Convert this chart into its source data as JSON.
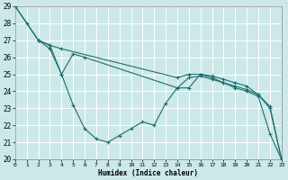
{
  "xlabel": "Humidex (Indice chaleur)",
  "xlim": [
    0,
    23
  ],
  "ylim": [
    20,
    29
  ],
  "yticks": [
    20,
    21,
    22,
    23,
    24,
    25,
    26,
    27,
    28,
    29
  ],
  "xticks": [
    0,
    1,
    2,
    3,
    4,
    5,
    6,
    7,
    8,
    9,
    10,
    11,
    12,
    13,
    14,
    15,
    16,
    17,
    18,
    19,
    20,
    21,
    22,
    23
  ],
  "bg_color": "#cce8e8",
  "grid_color": "#ffffff",
  "line_color": "#1a6e6e",
  "series": [
    {
      "x": [
        0,
        2,
        3,
        4,
        14,
        15,
        16,
        17,
        18,
        19,
        20,
        21,
        22,
        23
      ],
      "y": [
        29,
        27,
        26.7,
        26.5,
        24.8,
        25.0,
        25.0,
        24.9,
        24.7,
        24.5,
        24.3,
        23.8,
        23.1,
        20.0
      ]
    },
    {
      "x": [
        0,
        1,
        2,
        3,
        4,
        5,
        6,
        7,
        8,
        9,
        10,
        11,
        12,
        13,
        14,
        15,
        16,
        17,
        18,
        19,
        20,
        21,
        22,
        23
      ],
      "y": [
        29,
        28,
        27,
        26.5,
        25.0,
        23.2,
        21.8,
        21.2,
        21.0,
        21.4,
        21.8,
        22.2,
        22.0,
        23.3,
        24.2,
        24.2,
        25.0,
        24.8,
        24.5,
        24.2,
        24.0,
        23.7,
        21.5,
        20.0
      ]
    },
    {
      "x": [
        2,
        3,
        4,
        5,
        6,
        14,
        15,
        16,
        17,
        18,
        19,
        20,
        21,
        22,
        23
      ],
      "y": [
        27,
        26.7,
        25.0,
        26.2,
        26.0,
        24.2,
        24.8,
        24.9,
        24.7,
        24.5,
        24.3,
        24.1,
        23.8,
        23.0,
        20.0
      ]
    }
  ]
}
